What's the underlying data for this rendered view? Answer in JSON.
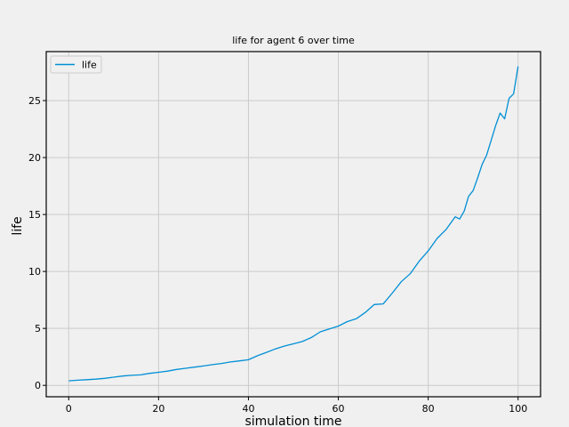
{
  "chart_data": {
    "type": "line",
    "title": "life for agent 6 over time",
    "xlabel": "simulation time",
    "ylabel": "life",
    "xlim": [
      -5,
      105
    ],
    "ylim": [
      -1,
      29.3
    ],
    "xticks": [
      0,
      20,
      40,
      60,
      80,
      100
    ],
    "yticks": [
      0,
      5,
      10,
      15,
      20,
      25
    ],
    "grid": true,
    "legend_position": "top-left",
    "series": [
      {
        "name": "life",
        "color": "#008fd5",
        "x": [
          0,
          2,
          4,
          6,
          8,
          10,
          12,
          14,
          16,
          18,
          20,
          22,
          24,
          26,
          28,
          30,
          32,
          34,
          36,
          38,
          40,
          42,
          44,
          46,
          48,
          50,
          52,
          54,
          56,
          58,
          60,
          62,
          64,
          66,
          68,
          70,
          72,
          74,
          76,
          78,
          80,
          82,
          84,
          86,
          87,
          88,
          89,
          90,
          91,
          92,
          93,
          94,
          95,
          96,
          97,
          98,
          99,
          100
        ],
        "y": [
          0.4,
          0.45,
          0.5,
          0.55,
          0.62,
          0.72,
          0.82,
          0.88,
          0.92,
          1.05,
          1.15,
          1.25,
          1.4,
          1.5,
          1.6,
          1.7,
          1.82,
          1.92,
          2.05,
          2.15,
          2.25,
          2.6,
          2.9,
          3.2,
          3.45,
          3.65,
          3.85,
          4.2,
          4.7,
          4.95,
          5.2,
          5.6,
          5.85,
          6.4,
          7.1,
          7.15,
          8.1,
          9.1,
          9.8,
          10.9,
          11.8,
          12.9,
          13.7,
          14.8,
          14.6,
          15.3,
          16.6,
          17.1,
          18.2,
          19.4,
          20.2,
          21.5,
          22.8,
          23.9,
          23.4,
          25.2,
          25.6,
          28.0
        ]
      }
    ]
  }
}
